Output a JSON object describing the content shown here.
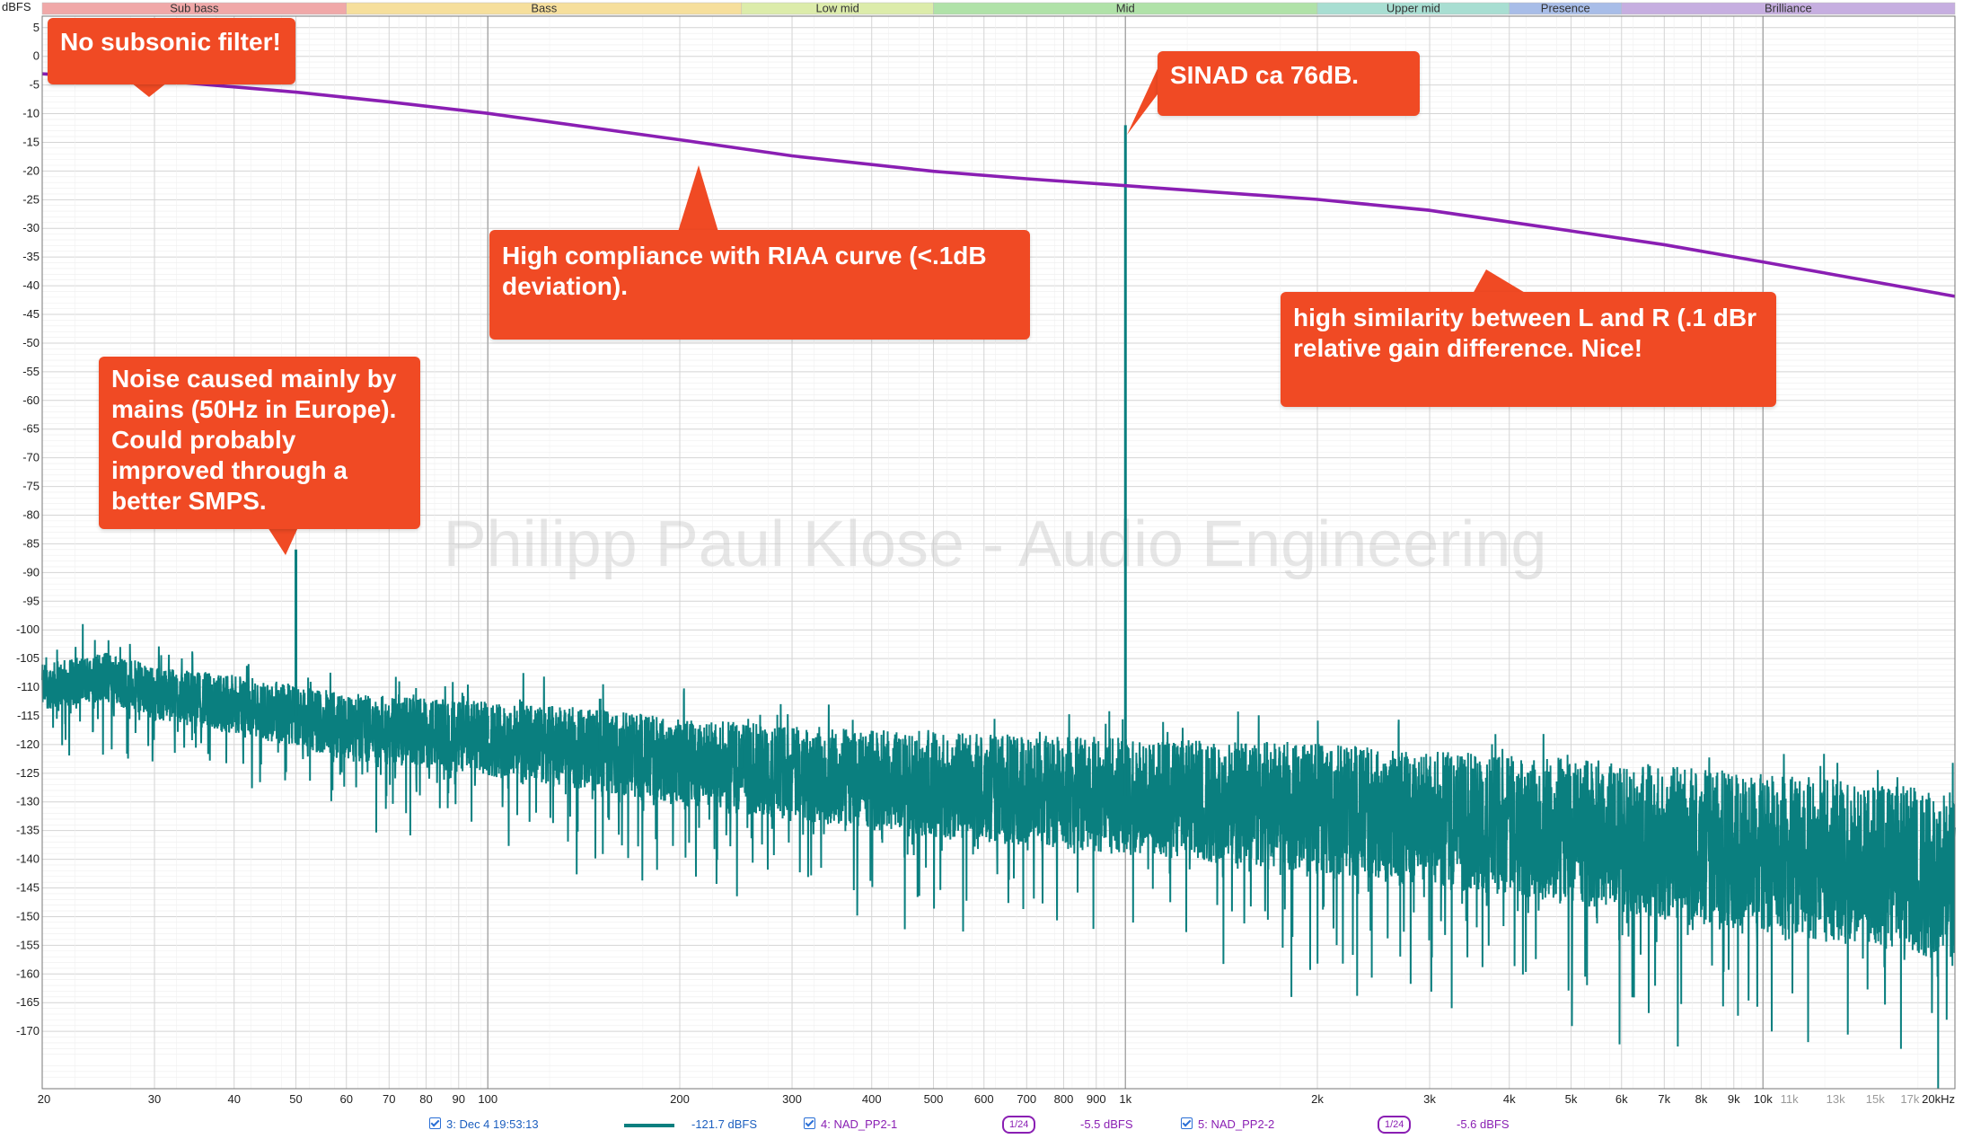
{
  "colors": {
    "noise_trace": "#0a7f7f",
    "riaa_curve": "#8a1fb3",
    "callout_bg": "#f04a24",
    "legend_text_1": "#1c5fbf",
    "legend_text_2": "#8a1fb3",
    "legend_text_3": "#8a1fb3"
  },
  "bands": [
    {
      "label": "Sub bass",
      "from": 20,
      "to": 60,
      "color": "#f0a8a8"
    },
    {
      "label": "Bass",
      "from": 60,
      "to": 250,
      "color": "#f6df9c"
    },
    {
      "label": "Low mid",
      "from": 250,
      "to": 500,
      "color": "#dcecaa"
    },
    {
      "label": "Mid",
      "from": 500,
      "to": 2000,
      "color": "#b0e2a8"
    },
    {
      "label": "Upper mid",
      "from": 2000,
      "to": 4000,
      "color": "#a8ded2"
    },
    {
      "label": "Presence",
      "from": 4000,
      "to": 6000,
      "color": "#a8bde8"
    },
    {
      "label": "Brilliance",
      "from": 6000,
      "to": 20000,
      "color": "#c6aee0"
    }
  ],
  "watermark": "Philipp Paul Klose - Audio Engineering",
  "callouts": [
    {
      "text": "No subsonic filter!"
    },
    {
      "text": "SINAD ca 76dB."
    },
    {
      "text": "High compliance with RIAA curve (<.1dB deviation)."
    },
    {
      "text": "high similarity between L and R (.1 dBr relative gain difference. Nice!"
    },
    {
      "text": "Noise caused mainly by mains (50Hz in Europe). Could probably improved through a better SMPS."
    }
  ],
  "legend": {
    "item1_label": "3: Dec 4 19:53:13",
    "item1_value": "-121.7 dBFS",
    "item2_label": "4: NAD_PP2-1",
    "item2_smoothing": "1/24",
    "item2_value": "-5.5 dBFS",
    "item3_label": "5: NAD_PP2-2",
    "item3_smoothing": "1/24",
    "item3_value": "-5.6 dBFS"
  },
  "chart_data": {
    "type": "line",
    "title": "",
    "xlabel": "",
    "ylabel": "dBFS",
    "x_scale": "log",
    "xlim": [
      20,
      20000
    ],
    "ylim": [
      -180,
      7
    ],
    "x_ticks": [
      {
        "v": 20,
        "label": "20"
      },
      {
        "v": 30,
        "label": "30"
      },
      {
        "v": 40,
        "label": "40"
      },
      {
        "v": 50,
        "label": "50"
      },
      {
        "v": 60,
        "label": "60"
      },
      {
        "v": 70,
        "label": "70"
      },
      {
        "v": 80,
        "label": "80"
      },
      {
        "v": 90,
        "label": "90"
      },
      {
        "v": 100,
        "label": "100"
      },
      {
        "v": 200,
        "label": "200"
      },
      {
        "v": 300,
        "label": "300"
      },
      {
        "v": 400,
        "label": "400"
      },
      {
        "v": 500,
        "label": "500"
      },
      {
        "v": 600,
        "label": "600"
      },
      {
        "v": 700,
        "label": "700"
      },
      {
        "v": 800,
        "label": "800"
      },
      {
        "v": 900,
        "label": "900"
      },
      {
        "v": 1000,
        "label": "1k"
      },
      {
        "v": 2000,
        "label": "2k"
      },
      {
        "v": 3000,
        "label": "3k"
      },
      {
        "v": 4000,
        "label": "4k"
      },
      {
        "v": 5000,
        "label": "5k"
      },
      {
        "v": 6000,
        "label": "6k"
      },
      {
        "v": 7000,
        "label": "7k"
      },
      {
        "v": 8000,
        "label": "8k"
      },
      {
        "v": 9000,
        "label": "9k"
      },
      {
        "v": 10000,
        "label": "10k"
      },
      {
        "v": 11000,
        "label": "11k",
        "minor": true
      },
      {
        "v": 13000,
        "label": "13k",
        "minor": true
      },
      {
        "v": 15000,
        "label": "15k",
        "minor": true
      },
      {
        "v": 17000,
        "label": "17k",
        "minor": true
      },
      {
        "v": 20000,
        "label": "20kHz"
      }
    ],
    "y_ticks": [
      5,
      0,
      -5,
      -10,
      -15,
      -20,
      -25,
      -30,
      -35,
      -40,
      -45,
      -50,
      -55,
      -60,
      -65,
      -70,
      -75,
      -80,
      -85,
      -90,
      -95,
      -100,
      -105,
      -110,
      -115,
      -120,
      -125,
      -130,
      -135,
      -140,
      -145,
      -150,
      -155,
      -160,
      -165,
      -170
    ],
    "grid": true,
    "series": [
      {
        "name": "3: Dec 4 19:53:13",
        "style": "noise-spectrum",
        "x": [
          20,
          25,
          30,
          40,
          50,
          60,
          80,
          100,
          150,
          200,
          300,
          500,
          700,
          1000,
          2000,
          3000,
          5000,
          7000,
          10000,
          15000,
          20000
        ],
        "y": [
          -110,
          -108,
          -111,
          -113,
          -115,
          -117,
          -118,
          -119,
          -121,
          -123,
          -125,
          -127,
          -128,
          -129,
          -131,
          -133,
          -135,
          -137,
          -139,
          -141,
          -143
        ],
        "peaks": [
          {
            "x": 50,
            "y": -86
          },
          {
            "x": 100,
            "y": -115
          },
          {
            "x": 150,
            "y": -112
          },
          {
            "x": 250,
            "y": -120
          },
          {
            "x": 1000,
            "y": -12
          },
          {
            "x": 2000,
            "y": -126
          }
        ]
      },
      {
        "name": "4: NAD_PP2-1",
        "x": [
          20,
          30,
          50,
          70,
          100,
          200,
          300,
          500,
          700,
          1000,
          2000,
          3000,
          5000,
          7000,
          10000,
          20000
        ],
        "y": [
          -3.0,
          -4.1,
          -6.2,
          -7.9,
          -9.9,
          -14.5,
          -17.3,
          -20.0,
          -21.3,
          -22.5,
          -24.9,
          -26.8,
          -30.4,
          -32.8,
          -35.8,
          -41.8
        ]
      },
      {
        "name": "5: NAD_PP2-2",
        "x": [
          20,
          30,
          50,
          70,
          100,
          200,
          300,
          500,
          700,
          1000,
          2000,
          3000,
          5000,
          7000,
          10000,
          20000
        ],
        "y": [
          -3.1,
          -4.2,
          -6.3,
          -8.0,
          -10.0,
          -14.6,
          -17.4,
          -20.1,
          -21.4,
          -22.6,
          -25.0,
          -26.9,
          -30.5,
          -32.9,
          -35.9,
          -41.9
        ]
      }
    ]
  }
}
